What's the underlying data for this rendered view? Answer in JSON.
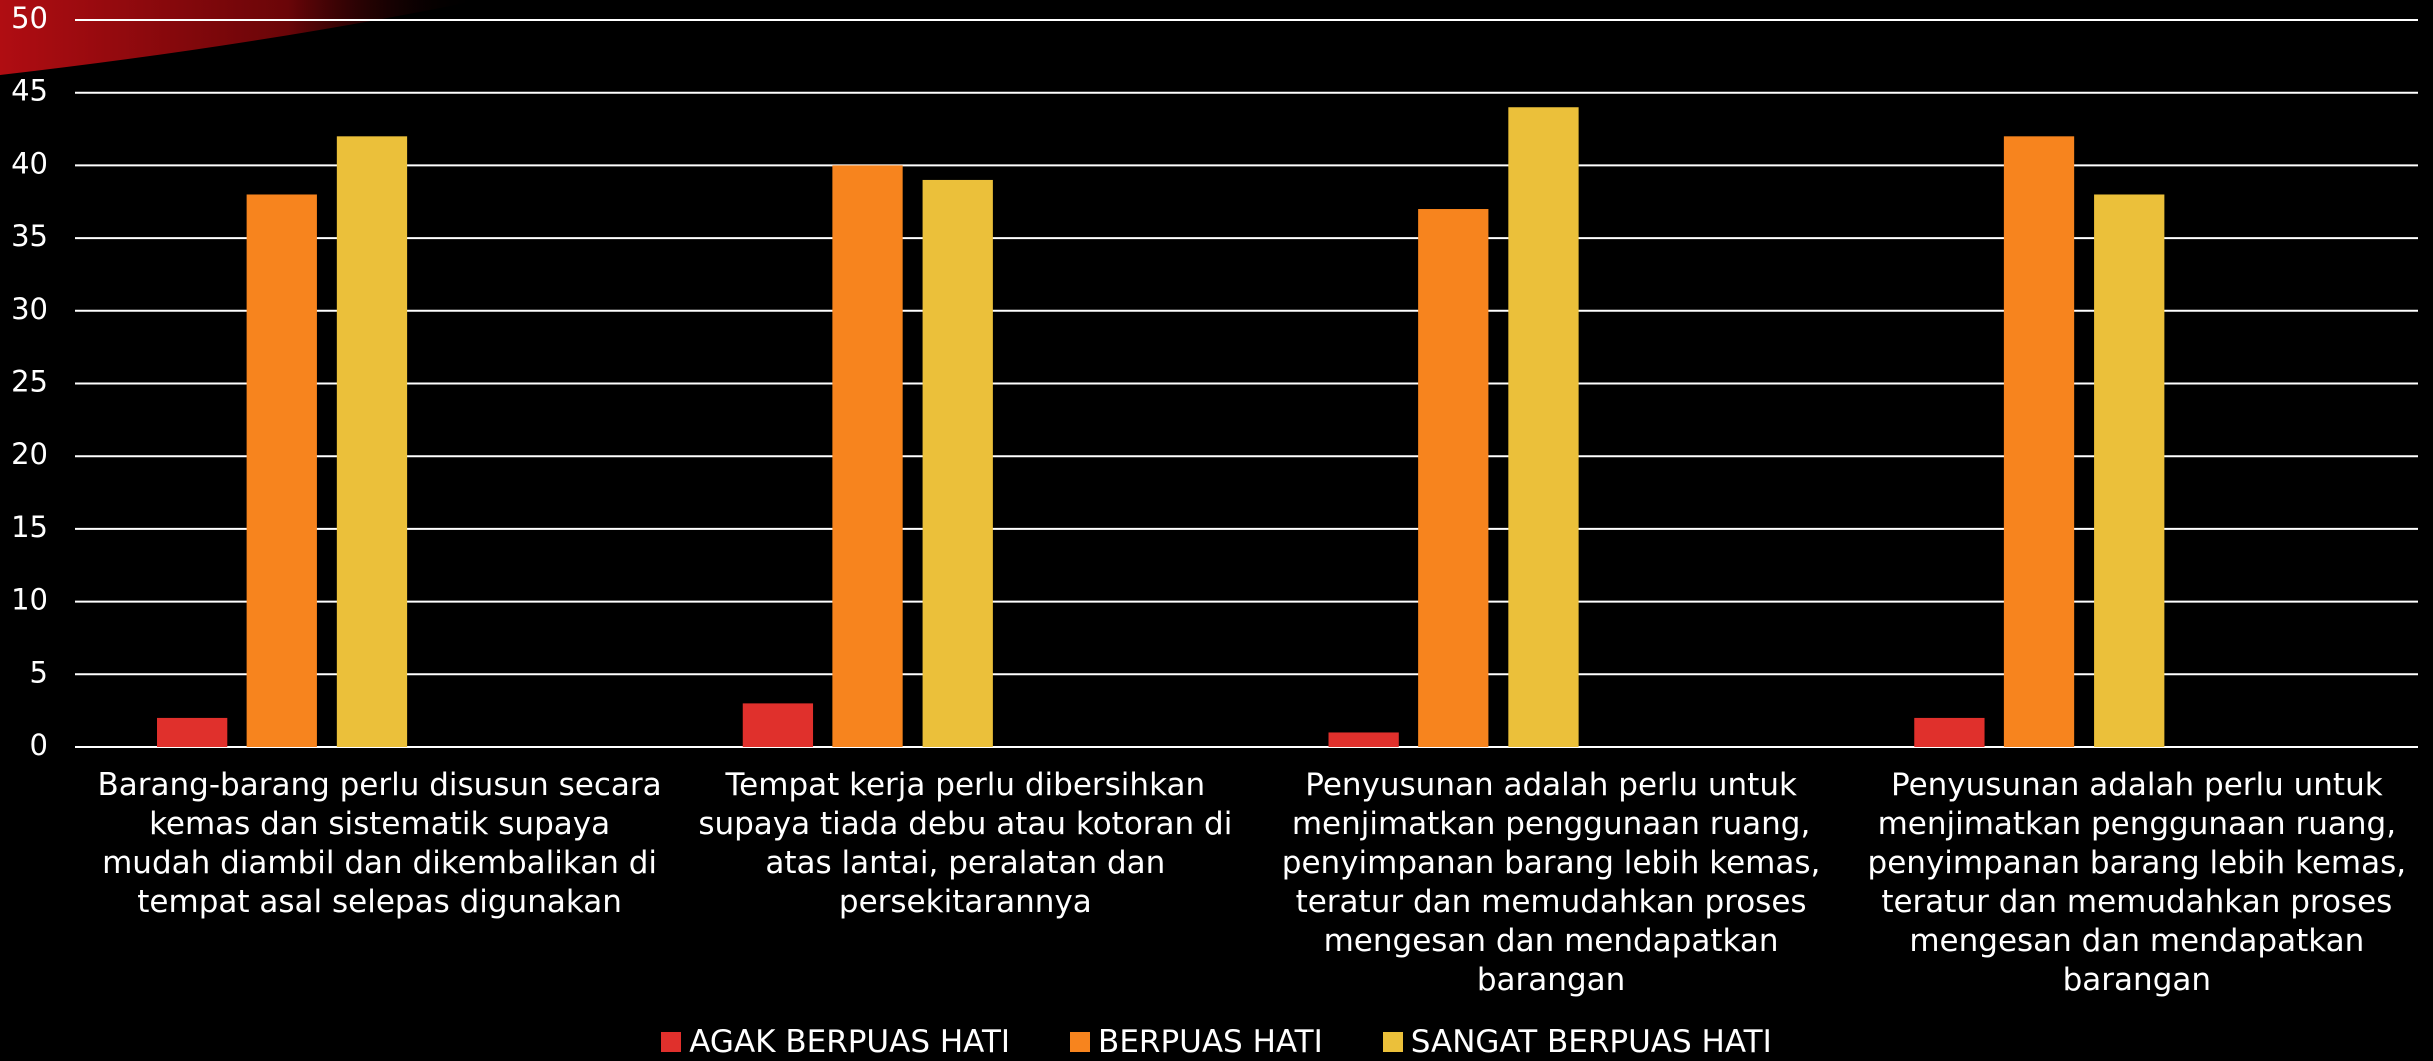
{
  "chart_data": {
    "type": "bar",
    "categories": [
      "Barang-barang perlu disusun secara kemas dan sistematik supaya mudah diambil dan dikembalikan di tempat asal selepas digunakan",
      "Tempat kerja perlu dibersihkan supaya tiada debu atau kotoran di atas lantai, peralatan dan persekitarannya",
      "Penyusunan adalah perlu untuk menjimatkan penggunaan ruang, penyimpanan barang lebih kemas, teratur dan memudahkan proses mengesan dan mendapatkan barangan",
      "Penyusunan adalah perlu untuk menjimatkan penggunaan ruang, penyimpanan barang lebih kemas, teratur dan memudahkan proses mengesan dan mendapatkan barangan"
    ],
    "series": [
      {
        "name": "AGAK BERPUAS HATI",
        "color": "#e0302c",
        "values": [
          2,
          3,
          1,
          2
        ]
      },
      {
        "name": "BERPUAS HATI",
        "color": "#f7841e",
        "values": [
          38,
          40,
          37,
          42
        ]
      },
      {
        "name": "SANGAT BERPUAS HATI",
        "color": "#ebc03a",
        "values": [
          42,
          39,
          44,
          38
        ]
      }
    ],
    "ylim": [
      0,
      50
    ],
    "yticks": [
      0,
      5,
      10,
      15,
      20,
      25,
      30,
      35,
      40,
      45,
      50
    ],
    "grid": true,
    "legend": "bottom"
  }
}
